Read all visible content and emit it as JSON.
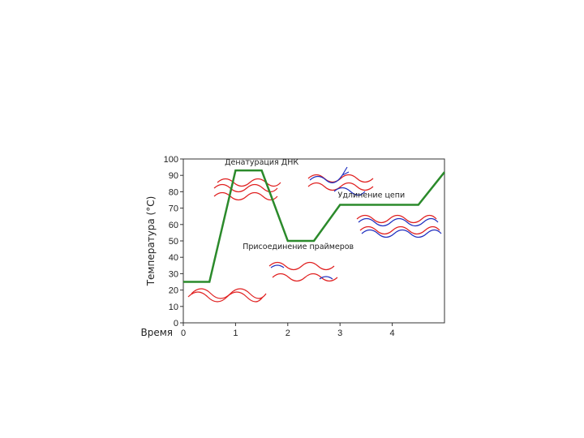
{
  "chart_data": {
    "type": "line",
    "title": "",
    "ylabel": "Температура (°C)",
    "xlabel": "Время",
    "ylim": [
      0,
      100
    ],
    "xlim": [
      0,
      5
    ],
    "grid": false,
    "y_ticks": [
      "0",
      "10",
      "20",
      "30",
      "40",
      "50",
      "60",
      "70",
      "80",
      "90",
      "100"
    ],
    "x_ticks": [
      "0",
      "1",
      "2",
      "3",
      "4"
    ],
    "series": [
      {
        "color": "#2b8a2b",
        "x": [
          0,
          0.5,
          1.0,
          1.5,
          2.0,
          2.5,
          3.0,
          4.5,
          5.0
        ],
        "y": [
          25,
          25,
          93,
          93,
          50,
          50,
          72,
          72,
          92
        ]
      }
    ],
    "annotations": [
      {
        "text": "Денатурация ДНК",
        "x": 1.5,
        "y": 96.5
      },
      {
        "text": "Удлинение цепи",
        "x": 3.6,
        "y": 76.5
      },
      {
        "text": "Присоединение праймеров",
        "x": 2.2,
        "y": 45
      }
    ],
    "colors": {
      "strand_red": "#e02020",
      "strand_blue": "#2030c0",
      "curve": "#2b8a2b"
    }
  }
}
